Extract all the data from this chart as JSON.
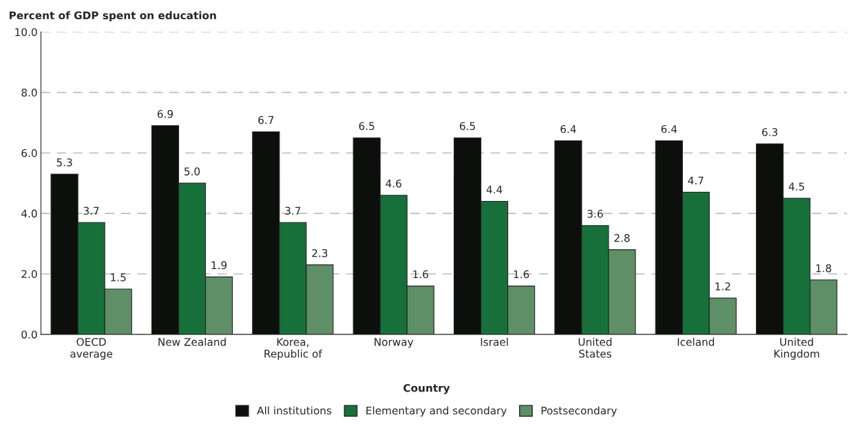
{
  "chart_data": {
    "type": "bar",
    "ylabel": "Percent of GDP spent on education",
    "xlabel": "Country",
    "categories": [
      "OECD\naverage",
      "New Zealand",
      "Korea,\nRepublic of",
      "Norway",
      "Israel",
      "United\nStates",
      "Iceland",
      "United\nKingdom"
    ],
    "series": [
      {
        "name": "All institutions",
        "color": "#0d0f0d",
        "values": [
          5.3,
          6.9,
          6.7,
          6.5,
          6.5,
          6.4,
          6.4,
          6.3
        ],
        "value_labels": [
          "5.3",
          "6.9",
          "6.7",
          "6.5",
          "6.5",
          "6.4",
          "6.4",
          "6.3"
        ]
      },
      {
        "name": "Elementary and secondary",
        "color": "#17703a",
        "values": [
          3.7,
          5.0,
          3.7,
          4.6,
          4.4,
          3.6,
          4.7,
          4.5
        ],
        "value_labels": [
          "3.7",
          "5.0",
          "3.7",
          "4.6",
          "4.4",
          "3.6",
          "4.7",
          "4.5"
        ]
      },
      {
        "name": "Postsecondary",
        "color": "#5f8f66",
        "values": [
          1.5,
          1.9,
          2.3,
          1.6,
          1.6,
          2.8,
          1.2,
          1.8
        ],
        "value_labels": [
          "1.5",
          "1.9",
          "2.3",
          "1.6",
          "1.6",
          "2.8",
          "1.2",
          "1.8"
        ]
      }
    ],
    "ylim": [
      0,
      10
    ],
    "yticks": [
      {
        "value": 0,
        "label": "0.0"
      },
      {
        "value": 2,
        "label": "2.0"
      },
      {
        "value": 4,
        "label": "4.0"
      },
      {
        "value": 6,
        "label": "6.0"
      },
      {
        "value": 8,
        "label": "8.0"
      },
      {
        "value": 10,
        "label": "10.0"
      }
    ],
    "grid": "y",
    "legend": "bottom"
  }
}
